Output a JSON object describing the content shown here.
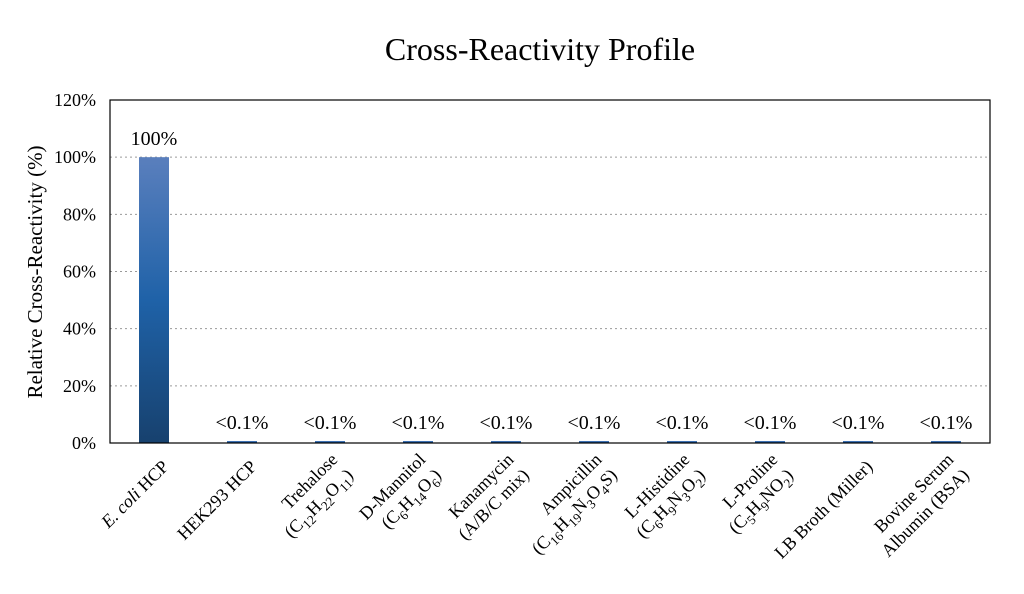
{
  "chart_data": {
    "type": "bar",
    "title": "Cross-Reactivity Profile",
    "xlabel": "",
    "ylabel": "Relative Cross-Reactivity (%)",
    "ylim": [
      0,
      120
    ],
    "yticks": [
      0,
      20,
      40,
      60,
      80,
      100,
      120
    ],
    "ytick_suffix": "%",
    "grid": true,
    "legend": "none",
    "bar_color_top": "#5a7fbd",
    "bar_color_mid": "#1f62a8",
    "bar_color_bottom": "#17416e",
    "categories": [
      [
        {
          "t": "E. coli",
          "i": true
        },
        {
          "t": " HCP"
        }
      ],
      [
        {
          "t": "HEK293 HCP"
        }
      ],
      [
        {
          "t": "Trehalose"
        }
      ],
      [
        {
          "t": "D-Mannitol"
        }
      ],
      [
        {
          "t": "Kanamycin"
        }
      ],
      [
        {
          "t": "Ampicillin"
        }
      ],
      [
        {
          "t": "L-Histidine"
        }
      ],
      [
        {
          "t": "L-Proline"
        }
      ],
      [
        {
          "t": "LB Broth (Miller)"
        }
      ],
      [
        {
          "t": "Bovine Serum"
        }
      ]
    ],
    "categories_line2": [
      [],
      [],
      [
        {
          "t": "(C"
        },
        {
          "t": "12",
          "s": true
        },
        {
          "t": "H"
        },
        {
          "t": "22",
          "s": true
        },
        {
          "t": "O"
        },
        {
          "t": "11",
          "s": true
        },
        {
          "t": ")"
        }
      ],
      [
        {
          "t": "(C"
        },
        {
          "t": "6",
          "s": true
        },
        {
          "t": "H"
        },
        {
          "t": "14",
          "s": true
        },
        {
          "t": "O"
        },
        {
          "t": "6",
          "s": true
        },
        {
          "t": ")"
        }
      ],
      [
        {
          "t": "(A/B/C mix)"
        }
      ],
      [
        {
          "t": "(C"
        },
        {
          "t": "16",
          "s": true
        },
        {
          "t": "H"
        },
        {
          "t": "19",
          "s": true
        },
        {
          "t": "N"
        },
        {
          "t": "3",
          "s": true
        },
        {
          "t": "O"
        },
        {
          "t": "4",
          "s": true
        },
        {
          "t": "S)"
        }
      ],
      [
        {
          "t": "(C"
        },
        {
          "t": "6",
          "s": true
        },
        {
          "t": "H"
        },
        {
          "t": "9",
          "s": true
        },
        {
          "t": "N"
        },
        {
          "t": "3",
          "s": true
        },
        {
          "t": "O"
        },
        {
          "t": "2",
          "s": true
        },
        {
          "t": ")"
        }
      ],
      [
        {
          "t": "(C"
        },
        {
          "t": "5",
          "s": true
        },
        {
          "t": "H"
        },
        {
          "t": "9",
          "s": true
        },
        {
          "t": "NO"
        },
        {
          "t": "2",
          "s": true
        },
        {
          "t": ")"
        }
      ],
      [],
      [
        {
          "t": "Albumin (BSA)"
        }
      ]
    ],
    "values": [
      100,
      0.1,
      0.1,
      0.1,
      0.1,
      0.1,
      0.1,
      0.1,
      0.1,
      0.1
    ],
    "data_labels": [
      "100%",
      "<0.1%",
      "<0.1%",
      "<0.1%",
      "<0.1%",
      "<0.1%",
      "<0.1%",
      "<0.1%",
      "<0.1%",
      "<0.1%"
    ]
  }
}
